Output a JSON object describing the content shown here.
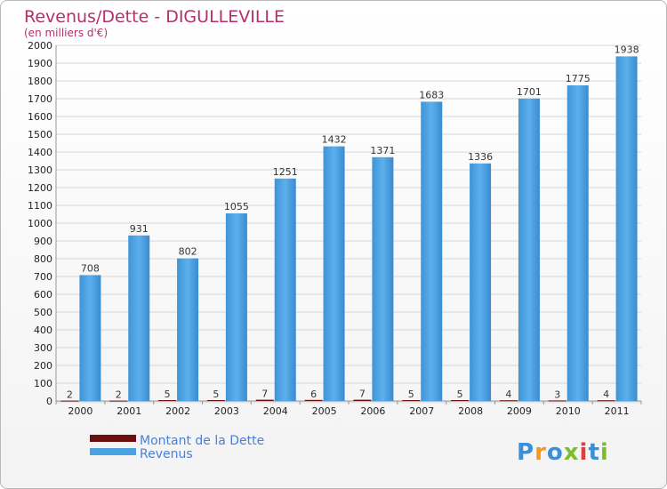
{
  "chart_data": {
    "type": "bar",
    "title": "Revenus/Dette - DIGULLEVILLE",
    "subtitle": "(en milliers d'€)",
    "categories": [
      "2000",
      "2001",
      "2002",
      "2003",
      "2004",
      "2005",
      "2006",
      "2007",
      "2008",
      "2009",
      "2010",
      "2011"
    ],
    "series": [
      {
        "name": "Montant de la Dette",
        "color": "#6b0f0f",
        "values": [
          2,
          2,
          5,
          5,
          7,
          6,
          7,
          5,
          5,
          4,
          3,
          4
        ]
      },
      {
        "name": "Revenus",
        "color": "#4aa2e2",
        "values": [
          708,
          931,
          802,
          1055,
          1251,
          1432,
          1371,
          1683,
          1336,
          1701,
          1775,
          1938
        ]
      }
    ],
    "ylim": [
      0,
      2000
    ],
    "yticks": [
      0,
      100,
      200,
      300,
      400,
      500,
      600,
      700,
      800,
      900,
      1000,
      1100,
      1200,
      1300,
      1400,
      1500,
      1600,
      1700,
      1800,
      1900,
      2000
    ],
    "grid": true,
    "legend_position": "bottom-left"
  },
  "logo": {
    "letters": [
      "P",
      "r",
      "o",
      "x",
      "i",
      "t",
      "i"
    ],
    "colors": [
      "#3a8fd8",
      "#f39a1e",
      "#3a8fd8",
      "#7cbd2b",
      "#e23c3c",
      "#3a8fd8",
      "#7cbd2b"
    ]
  }
}
